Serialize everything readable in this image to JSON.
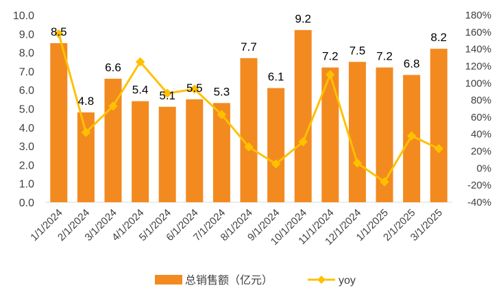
{
  "chart_data": {
    "type": "bar",
    "categories": [
      "1/1/2024",
      "2/1/2024",
      "3/1/2024",
      "4/1/2024",
      "5/1/2024",
      "6/1/2024",
      "7/1/2024",
      "8/1/2024",
      "9/1/2024",
      "10/1/2024",
      "11/1/2024",
      "12/1/2024",
      "1/1/2025",
      "2/1/2025",
      "3/1/2025"
    ],
    "series": [
      {
        "name": "总销售额（亿元）",
        "type": "bar",
        "axis": "left",
        "color": "#F28A20",
        "values": [
          8.5,
          4.8,
          6.6,
          5.4,
          5.1,
          5.5,
          5.3,
          7.7,
          6.1,
          9.2,
          7.2,
          7.5,
          7.2,
          6.8,
          8.2
        ],
        "data_labels": [
          "8.5",
          "4.8",
          "6.6",
          "5.4",
          "5.1",
          "5.5",
          "5.3",
          "7.7",
          "6.1",
          "9.2",
          "7.2",
          "7.5",
          "7.2",
          "6.8",
          "8.2"
        ]
      },
      {
        "name": "yoy",
        "type": "line",
        "axis": "right",
        "color": "#FFC000",
        "marker": "diamond",
        "values": [
          158,
          42,
          73,
          125,
          88,
          93,
          63,
          25,
          5,
          31,
          110,
          6,
          -16,
          38,
          23
        ]
      }
    ],
    "ylim": [
      0,
      10
    ],
    "yticks": [
      "0.0",
      "1.0",
      "2.0",
      "3.0",
      "4.0",
      "5.0",
      "6.0",
      "7.0",
      "8.0",
      "9.0",
      "10.0"
    ],
    "y2lim": [
      -40,
      180
    ],
    "y2ticks": [
      "-40%",
      "-20%",
      "0%",
      "20%",
      "40%",
      "60%",
      "80%",
      "100%",
      "120%",
      "140%",
      "160%",
      "180%"
    ],
    "grid": false,
    "legend": "bottom-center"
  }
}
